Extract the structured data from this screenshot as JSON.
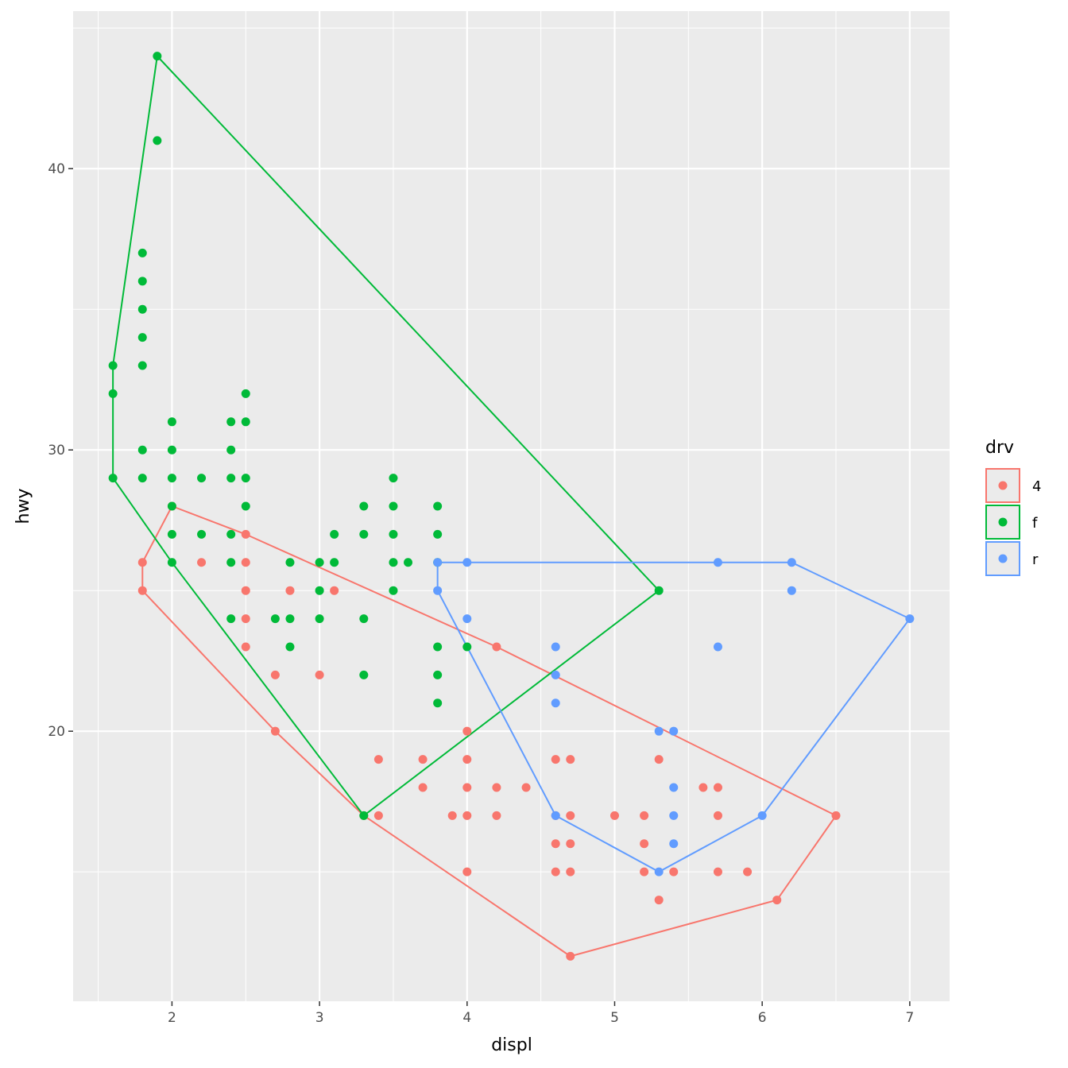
{
  "chart_data": {
    "type": "scatter",
    "xlabel": "displ",
    "ylabel": "hwy",
    "xlim": [
      1.33,
      7.27
    ],
    "ylim": [
      10.4,
      45.6
    ],
    "xticks": [
      2,
      3,
      4,
      5,
      6,
      7
    ],
    "yticks": [
      20,
      30,
      40
    ],
    "grid": true,
    "legend": {
      "title": "drv",
      "placement": "right"
    },
    "overlay": "convex hull polygon per group",
    "series": [
      {
        "name": "4",
        "color": "#F8766D",
        "points": [
          [
            1.8,
            26
          ],
          [
            1.8,
            25
          ],
          [
            2.0,
            28
          ],
          [
            2.2,
            26
          ],
          [
            2.5,
            27
          ],
          [
            2.5,
            26
          ],
          [
            2.5,
            25
          ],
          [
            2.5,
            24
          ],
          [
            2.5,
            23
          ],
          [
            2.7,
            22
          ],
          [
            2.7,
            20
          ],
          [
            2.8,
            25
          ],
          [
            3.0,
            22
          ],
          [
            3.1,
            25
          ],
          [
            3.3,
            17
          ],
          [
            3.4,
            19
          ],
          [
            3.4,
            17
          ],
          [
            3.7,
            19
          ],
          [
            3.7,
            18
          ],
          [
            3.9,
            17
          ],
          [
            4.0,
            20
          ],
          [
            4.0,
            19
          ],
          [
            4.0,
            18
          ],
          [
            4.0,
            17
          ],
          [
            4.0,
            15
          ],
          [
            4.2,
            23
          ],
          [
            4.2,
            18
          ],
          [
            4.2,
            17
          ],
          [
            4.4,
            18
          ],
          [
            4.6,
            19
          ],
          [
            4.6,
            17
          ],
          [
            4.6,
            16
          ],
          [
            4.6,
            15
          ],
          [
            4.7,
            19
          ],
          [
            4.7,
            17
          ],
          [
            4.7,
            16
          ],
          [
            4.7,
            15
          ],
          [
            4.7,
            12
          ],
          [
            5.0,
            17
          ],
          [
            5.2,
            17
          ],
          [
            5.2,
            16
          ],
          [
            5.2,
            15
          ],
          [
            5.3,
            19
          ],
          [
            5.3,
            14
          ],
          [
            5.4,
            15
          ],
          [
            5.6,
            18
          ],
          [
            5.7,
            18
          ],
          [
            5.7,
            17
          ],
          [
            5.7,
            15
          ],
          [
            5.9,
            15
          ],
          [
            6.1,
            14
          ],
          [
            6.5,
            17
          ]
        ]
      },
      {
        "name": "f",
        "color": "#00BA38",
        "points": [
          [
            1.6,
            33
          ],
          [
            1.6,
            32
          ],
          [
            1.6,
            29
          ],
          [
            1.8,
            37
          ],
          [
            1.8,
            36
          ],
          [
            1.8,
            35
          ],
          [
            1.8,
            34
          ],
          [
            1.8,
            33
          ],
          [
            1.8,
            30
          ],
          [
            1.8,
            29
          ],
          [
            1.9,
            44
          ],
          [
            1.9,
            41
          ],
          [
            2.0,
            31
          ],
          [
            2.0,
            30
          ],
          [
            2.0,
            29
          ],
          [
            2.0,
            28
          ],
          [
            2.0,
            27
          ],
          [
            2.0,
            26
          ],
          [
            2.2,
            29
          ],
          [
            2.2,
            27
          ],
          [
            2.4,
            31
          ],
          [
            2.4,
            30
          ],
          [
            2.4,
            29
          ],
          [
            2.4,
            27
          ],
          [
            2.4,
            26
          ],
          [
            2.4,
            24
          ],
          [
            2.5,
            32
          ],
          [
            2.5,
            31
          ],
          [
            2.5,
            29
          ],
          [
            2.5,
            28
          ],
          [
            2.7,
            24
          ],
          [
            2.8,
            26
          ],
          [
            2.8,
            24
          ],
          [
            2.8,
            23
          ],
          [
            3.0,
            26
          ],
          [
            3.0,
            25
          ],
          [
            3.0,
            24
          ],
          [
            3.1,
            27
          ],
          [
            3.1,
            26
          ],
          [
            3.3,
            28
          ],
          [
            3.3,
            27
          ],
          [
            3.3,
            24
          ],
          [
            3.3,
            22
          ],
          [
            3.3,
            17
          ],
          [
            3.5,
            29
          ],
          [
            3.5,
            28
          ],
          [
            3.5,
            27
          ],
          [
            3.5,
            26
          ],
          [
            3.5,
            25
          ],
          [
            3.6,
            26
          ],
          [
            3.8,
            28
          ],
          [
            3.8,
            27
          ],
          [
            3.8,
            26
          ],
          [
            3.8,
            23
          ],
          [
            3.8,
            22
          ],
          [
            3.8,
            21
          ],
          [
            4.0,
            23
          ],
          [
            5.3,
            25
          ]
        ]
      },
      {
        "name": "r",
        "color": "#619CFF",
        "points": [
          [
            3.8,
            26
          ],
          [
            3.8,
            25
          ],
          [
            4.0,
            26
          ],
          [
            4.0,
            24
          ],
          [
            4.6,
            23
          ],
          [
            4.6,
            22
          ],
          [
            4.6,
            21
          ],
          [
            4.6,
            17
          ],
          [
            5.3,
            20
          ],
          [
            5.3,
            15
          ],
          [
            5.4,
            20
          ],
          [
            5.4,
            18
          ],
          [
            5.4,
            17
          ],
          [
            5.4,
            16
          ],
          [
            5.7,
            26
          ],
          [
            5.7,
            23
          ],
          [
            6.0,
            17
          ],
          [
            6.2,
            26
          ],
          [
            6.2,
            25
          ],
          [
            7.0,
            24
          ]
        ]
      }
    ]
  }
}
